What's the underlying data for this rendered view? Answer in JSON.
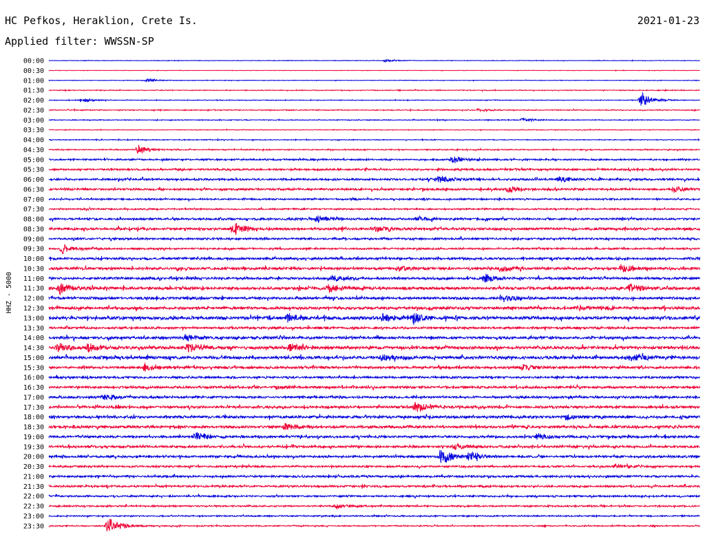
{
  "header": {
    "station": "HC Pefkos, Heraklion, Crete Is.",
    "date": "2021-01-23",
    "filter": "Applied filter: WWSSN-SP"
  },
  "chart_data": {
    "type": "line",
    "channel_label": "HHZ - 5000",
    "row_labels": [
      "00:00",
      "00:30",
      "01:00",
      "01:30",
      "02:00",
      "02:30",
      "03:00",
      "03:30",
      "04:00",
      "04:30",
      "05:00",
      "05:30",
      "06:00",
      "06:30",
      "07:00",
      "07:30",
      "08:00",
      "08:30",
      "09:00",
      "09:30",
      "10:00",
      "10:30",
      "11:00",
      "11:30",
      "12:00",
      "12:30",
      "13:00",
      "13:30",
      "14:00",
      "14:30",
      "15:00",
      "15:30",
      "16:00",
      "16:30",
      "17:00",
      "17:30",
      "18:00",
      "18:30",
      "19:00",
      "19:30",
      "20:00",
      "20:30",
      "21:00",
      "21:30",
      "22:00",
      "22:30",
      "23:00",
      "23:30"
    ],
    "trace_colors": [
      "#0000dd",
      "#ee0033"
    ],
    "noise_level": [
      0.4,
      0.3,
      0.4,
      0.6,
      0.5,
      0.7,
      0.6,
      0.5,
      0.6,
      0.8,
      1.2,
      1.4,
      1.5,
      1.6,
      1.2,
      1.1,
      1.6,
      1.9,
      1.5,
      1.3,
      1.8,
      2.0,
      1.9,
      2.2,
      1.9,
      2.1,
      2.4,
      1.7,
      2.0,
      2.3,
      2.2,
      1.9,
      1.6,
      1.8,
      1.7,
      1.9,
      2.0,
      2.0,
      1.8,
      1.8,
      1.7,
      1.4,
      1.6,
      1.5,
      1.3,
      1.2,
      1.0,
      0.9
    ],
    "events": [
      {
        "row": 0,
        "minute": 15.5,
        "amplitude": 2
      },
      {
        "row": 2,
        "minute": 4.5,
        "amplitude": 3
      },
      {
        "row": 4,
        "minute": 1.5,
        "amplitude": 4
      },
      {
        "row": 4,
        "minute": 27.3,
        "amplitude": 14
      },
      {
        "row": 5,
        "minute": 19.8,
        "amplitude": 3
      },
      {
        "row": 6,
        "minute": 21.8,
        "amplitude": 4
      },
      {
        "row": 9,
        "minute": 4.1,
        "amplitude": 8
      },
      {
        "row": 10,
        "minute": 18.6,
        "amplitude": 6
      },
      {
        "row": 12,
        "minute": 17.9,
        "amplitude": 8
      },
      {
        "row": 12,
        "minute": 23.5,
        "amplitude": 5
      },
      {
        "row": 13,
        "minute": 21.2,
        "amplitude": 5
      },
      {
        "row": 13,
        "minute": 28.8,
        "amplitude": 5
      },
      {
        "row": 16,
        "minute": 12.4,
        "amplitude": 6
      },
      {
        "row": 16,
        "minute": 16.9,
        "amplitude": 4
      },
      {
        "row": 17,
        "minute": 8.5,
        "amplitude": 10
      },
      {
        "row": 17,
        "minute": 15.1,
        "amplitude": 4
      },
      {
        "row": 19,
        "minute": 0.6,
        "amplitude": 8
      },
      {
        "row": 21,
        "minute": 16.1,
        "amplitude": 4
      },
      {
        "row": 21,
        "minute": 20.8,
        "amplitude": 4
      },
      {
        "row": 21,
        "minute": 26.4,
        "amplitude": 7
      },
      {
        "row": 22,
        "minute": 13.1,
        "amplitude": 5
      },
      {
        "row": 22,
        "minute": 20.1,
        "amplitude": 7
      },
      {
        "row": 23,
        "minute": 0.5,
        "amplitude": 10
      },
      {
        "row": 23,
        "minute": 12.9,
        "amplitude": 6
      },
      {
        "row": 23,
        "minute": 26.8,
        "amplitude": 7
      },
      {
        "row": 24,
        "minute": 20.9,
        "amplitude": 7
      },
      {
        "row": 25,
        "minute": 24.3,
        "amplitude": 4
      },
      {
        "row": 26,
        "minute": 11.0,
        "amplitude": 7
      },
      {
        "row": 26,
        "minute": 15.4,
        "amplitude": 7
      },
      {
        "row": 26,
        "minute": 16.8,
        "amplitude": 11
      },
      {
        "row": 28,
        "minute": 6.3,
        "amplitude": 6
      },
      {
        "row": 29,
        "minute": 0.4,
        "amplitude": 6
      },
      {
        "row": 29,
        "minute": 1.8,
        "amplitude": 6
      },
      {
        "row": 29,
        "minute": 6.4,
        "amplitude": 8
      },
      {
        "row": 29,
        "minute": 11.1,
        "amplitude": 6
      },
      {
        "row": 30,
        "minute": 15.4,
        "amplitude": 6
      },
      {
        "row": 30,
        "minute": 27.1,
        "amplitude": 5
      },
      {
        "row": 31,
        "minute": 4.4,
        "amplitude": 6
      },
      {
        "row": 31,
        "minute": 21.8,
        "amplitude": 5
      },
      {
        "row": 33,
        "minute": 10.5,
        "amplitude": 3
      },
      {
        "row": 34,
        "minute": 2.6,
        "amplitude": 6
      },
      {
        "row": 35,
        "minute": 16.9,
        "amplitude": 9
      },
      {
        "row": 36,
        "minute": 23.9,
        "amplitude": 4
      },
      {
        "row": 37,
        "minute": 10.9,
        "amplitude": 5
      },
      {
        "row": 38,
        "minute": 6.7,
        "amplitude": 9
      },
      {
        "row": 38,
        "minute": 22.5,
        "amplitude": 5
      },
      {
        "row": 39,
        "minute": 18.7,
        "amplitude": 5
      },
      {
        "row": 40,
        "minute": 18.1,
        "amplitude": 13
      },
      {
        "row": 40,
        "minute": 19.4,
        "amplitude": 8
      },
      {
        "row": 41,
        "minute": 26.1,
        "amplitude": 3
      },
      {
        "row": 45,
        "minute": 13.2,
        "amplitude": 5
      },
      {
        "row": 47,
        "minute": 2.7,
        "amplitude": 16
      }
    ]
  }
}
